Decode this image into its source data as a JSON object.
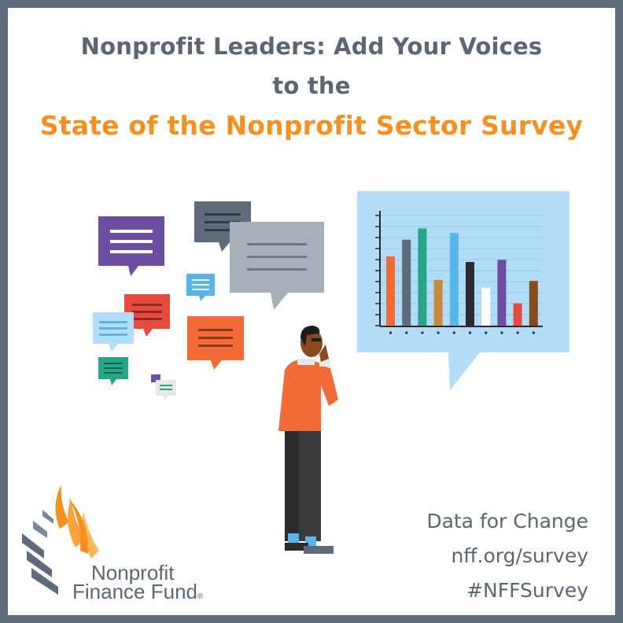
{
  "headline": {
    "line1": "Nonprofit Leaders:  Add Your Voices",
    "line2": "to the",
    "line3": "State of the Nonprofit Sector Survey"
  },
  "cta": {
    "tagline": "Data for Change",
    "url": "nff.org/survey",
    "hashtag": "#NFFSurvey"
  },
  "logo": {
    "line1": "Nonprofit",
    "line2": "Finance Fund",
    "mark": "®"
  },
  "chart_data": {
    "type": "bar",
    "values": [
      62,
      77,
      87,
      41,
      83,
      57,
      34,
      59,
      20,
      40
    ],
    "ylim": [
      0,
      100
    ],
    "grid": true
  },
  "colors": {
    "border": "#5d6b7a",
    "headline": "#5a6673",
    "accent": "#f7901e",
    "chart_bubble": "#b3dcf6",
    "bars": [
      "#f26a35",
      "#5d6b7a",
      "#26a788",
      "#c88a3c",
      "#55b6ea",
      "#2b2b2b",
      "#ffffff",
      "#6c4ea3",
      "#e84b3c",
      "#8a4a1f"
    ]
  },
  "icons": [
    "speech-bubble-icon",
    "person-thinking-icon",
    "bar-chart-icon",
    "nff-leaf-logo-icon"
  ]
}
